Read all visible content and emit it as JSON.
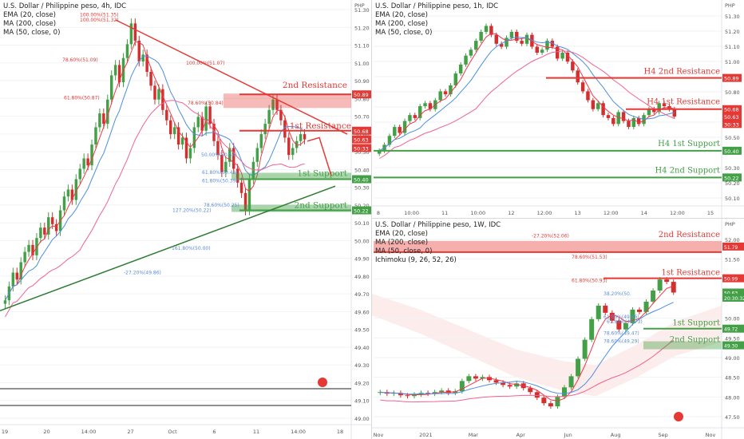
{
  "panels": [
    {
      "id": "h4",
      "legend": [
        "U.S. Dollar / Philippine peso, 4h, IDC",
        "EMA (20, close)",
        "MA (200, close)",
        "MA (50, close, 0)"
      ],
      "currency_label": "PHP",
      "price_axis": [
        "51.30",
        "51.20",
        "51.10",
        "51.00",
        "50.90",
        "50.80",
        "50.70",
        "50.60",
        "50.50",
        "50.40",
        "50.30",
        "50.20",
        "50.10",
        "50.00",
        "49.90",
        "49.80",
        "49.70",
        "49.60",
        "49.50",
        "49.40",
        "49.30",
        "49.20",
        "49.10",
        "49.00"
      ],
      "time_axis": [
        "19",
        "20",
        "14:00",
        "27",
        "Oct",
        "6",
        "11",
        "14:00",
        "18"
      ],
      "price_tags": [
        {
          "text": "50.89",
          "color": "#e53935"
        },
        {
          "text": "50.68",
          "color": "#e53935"
        },
        {
          "text": "50.63",
          "color": "#e53935"
        },
        {
          "text": "50:33",
          "color": "#e53935"
        },
        {
          "text": "50.40",
          "color": "#43a047"
        },
        {
          "text": "50.22",
          "color": "#43a047"
        }
      ],
      "fib_labels": [
        "100.00%(51.35)",
        "100.00%(51.32)",
        "78.60%(51.09)",
        "100.00%(51.07)",
        "61.80%(50.87)",
        "78.60%(50.84)",
        "50.00%(50.54)",
        "61.80%(50.44)",
        "61.80%(50.39)",
        "78.60%(50.25)",
        "127.20%(50.22)",
        "161.80%(50.00)",
        "-27.20%(49.86)"
      ],
      "level_labels": {
        "r2": "2nd Resistance",
        "r1": "1st Resistance",
        "s1": "1st Support",
        "s2": "2nd Support"
      }
    },
    {
      "id": "h1",
      "legend": [
        "U.S. Dollar / Philippine peso, 1h, IDC",
        "EMA (20, close)",
        "MA (200, close)",
        "MA (50, close, 0)"
      ],
      "currency_label": "PHP",
      "price_axis": [
        "51.30",
        "51.20",
        "51.10",
        "51.00",
        "50.90",
        "50.80",
        "50.70",
        "50.60",
        "50.50",
        "50.40",
        "50.30",
        "50.20",
        "50.10"
      ],
      "time_axis": [
        "8",
        "10:00",
        "11",
        "10:00",
        "12",
        "12:00",
        "13",
        "12:00",
        "14",
        "12:00",
        "15"
      ],
      "price_tags": [
        {
          "text": "50.89",
          "color": "#e53935"
        },
        {
          "text": "50.68",
          "color": "#e53935"
        },
        {
          "text": "50.63",
          "color": "#e53935"
        },
        {
          "text": "30:33",
          "color": "#e53935"
        },
        {
          "text": "50.40",
          "color": "#43a047"
        },
        {
          "text": "50.22",
          "color": "#43a047"
        }
      ],
      "level_labels": {
        "r2": "H4 2nd Resistance",
        "r1": "H4 1st Resistance",
        "s1": "H4 1st Support",
        "s2": "H4 2nd Support"
      }
    },
    {
      "id": "w1",
      "legend": [
        "U.S. Dollar / Philippine peso, 1W, IDC",
        "EMA (20, close)",
        "MA (200, close)",
        "MA (50, close, 0)",
        "Ichimoku (9, 26, 52, 26)"
      ],
      "currency_label": "PHP",
      "price_axis": [
        "52.00",
        "51.50",
        "51.00",
        "50.50",
        "50.00",
        "49.50",
        "49.00",
        "48.50",
        "48.00",
        "47.50"
      ],
      "time_axis": [
        "Nov",
        "2021",
        "Mar",
        "Apr",
        "Jun",
        "Aug",
        "Sep",
        "Nov"
      ],
      "price_tags": [
        {
          "text": "51.79",
          "color": "#e53935"
        },
        {
          "text": "50.99",
          "color": "#e53935"
        },
        {
          "text": "50.63",
          "color": "#43a047"
        },
        {
          "text": "20:30:32",
          "color": "#43a047"
        },
        {
          "text": "49.72",
          "color": "#43a047"
        },
        {
          "text": "49.30",
          "color": "#43a047"
        }
      ],
      "fib_labels": [
        "-27.20%(52.06)",
        "78.60%(51.53)",
        "61.80%(50.93)",
        "38.20%(50.",
        "61.80%(49.86)",
        "61.80%(49.73)",
        "78.60%(49.47)",
        "78.60%(49.29)"
      ],
      "level_labels": {
        "r2": "2nd Resistance",
        "r1": "1st Resistance",
        "s1": "1st Support",
        "s2": "2nd Support"
      }
    }
  ],
  "colors": {
    "up": "#43a047",
    "down": "#d32f2f",
    "resistance": "#e53935",
    "support": "#43a047",
    "ema20": "#f23645",
    "ma200": "#f06292",
    "ma50": "#4c8fe0",
    "fib": "#5b8dd9",
    "trend_down": "#e53935",
    "trend_up": "#2e7d32"
  },
  "chart_data": [
    {
      "type": "candlestick",
      "title": "U.S. Dollar / Philippine peso, 4h, IDC",
      "ylim": [
        49.0,
        51.38
      ],
      "levels": [
        {
          "name": "2nd Resistance",
          "value": 50.89
        },
        {
          "name": "1st Resistance",
          "value": 50.68
        },
        {
          "name": "1st Support",
          "value": 50.4
        },
        {
          "name": "2nd Support",
          "value": 50.22
        }
      ],
      "last_price": 50.63,
      "close_path": [
        49.7,
        49.78,
        49.86,
        49.82,
        49.92,
        49.98,
        50.02,
        49.96,
        50.06,
        50.12,
        50.08,
        50.18,
        50.14,
        50.1,
        50.22,
        50.3,
        50.34,
        50.28,
        50.4,
        50.46,
        50.52,
        50.48,
        50.6,
        50.7,
        50.78,
        50.72,
        50.86,
        51.0,
        51.06,
        50.96,
        51.1,
        51.18,
        51.3,
        51.2,
        51.08,
        51.12,
        51.02,
        50.94,
        50.86,
        50.92,
        50.8,
        50.74,
        50.66,
        50.7,
        50.6,
        50.64,
        50.52,
        50.58,
        50.7,
        50.76,
        50.68,
        50.82,
        50.72,
        50.62,
        50.54,
        50.44,
        50.5,
        50.58,
        50.46,
        50.38,
        50.32,
        50.22,
        50.4,
        50.5,
        50.58,
        50.66,
        50.72,
        50.8,
        50.86,
        50.8,
        50.74,
        50.64,
        50.54,
        50.58,
        50.62,
        50.66,
        50.63
      ]
    },
    {
      "type": "candlestick",
      "title": "U.S. Dollar / Philippine peso, 1h, IDC",
      "ylim": [
        50.05,
        51.35
      ],
      "levels": [
        {
          "name": "H4 2nd Resistance",
          "value": 50.89
        },
        {
          "name": "H4 1st Resistance",
          "value": 50.68
        },
        {
          "name": "H4 1st Support",
          "value": 50.4
        },
        {
          "name": "H4 2nd Support",
          "value": 50.22
        }
      ],
      "last_price": 50.63,
      "close_path": [
        50.4,
        50.44,
        50.5,
        50.56,
        50.52,
        50.6,
        50.64,
        50.62,
        50.7,
        50.72,
        50.68,
        50.74,
        50.8,
        50.78,
        50.84,
        50.92,
        50.98,
        51.04,
        51.08,
        51.14,
        51.2,
        51.24,
        51.18,
        51.12,
        51.1,
        51.16,
        51.2,
        51.14,
        51.12,
        51.18,
        51.1,
        51.06,
        51.08,
        51.14,
        51.1,
        51.02,
        51.06,
        51.0,
        50.94,
        50.86,
        50.8,
        50.74,
        50.68,
        50.72,
        50.64,
        50.62,
        50.58,
        50.66,
        50.6,
        50.56,
        50.62,
        50.58,
        50.64,
        50.68,
        50.66,
        50.72,
        50.7,
        50.68,
        50.63
      ]
    },
    {
      "type": "candlestick",
      "title": "U.S. Dollar / Philippine peso, 1W, IDC",
      "ylim": [
        47.3,
        52.25
      ],
      "levels": [
        {
          "name": "2nd Resistance",
          "value": 51.79
        },
        {
          "name": "1st Resistance",
          "value": 50.99
        },
        {
          "name": "1st Support",
          "value": 49.72
        },
        {
          "name": "2nd Support",
          "value": 49.3
        }
      ],
      "last_price": 50.63,
      "close_path": [
        48.12,
        48.08,
        48.1,
        48.04,
        48.02,
        48.06,
        48.1,
        48.08,
        48.12,
        48.16,
        48.1,
        48.14,
        48.4,
        48.52,
        48.46,
        48.5,
        48.42,
        48.36,
        48.3,
        48.26,
        48.34,
        48.22,
        48.12,
        47.98,
        47.84,
        47.76,
        48.0,
        48.24,
        48.52,
        48.96,
        49.44,
        49.96,
        50.3,
        50.12,
        49.92,
        49.7,
        49.86,
        50.2,
        50.14,
        50.4,
        50.68,
        50.96,
        50.9,
        50.63
      ]
    }
  ]
}
